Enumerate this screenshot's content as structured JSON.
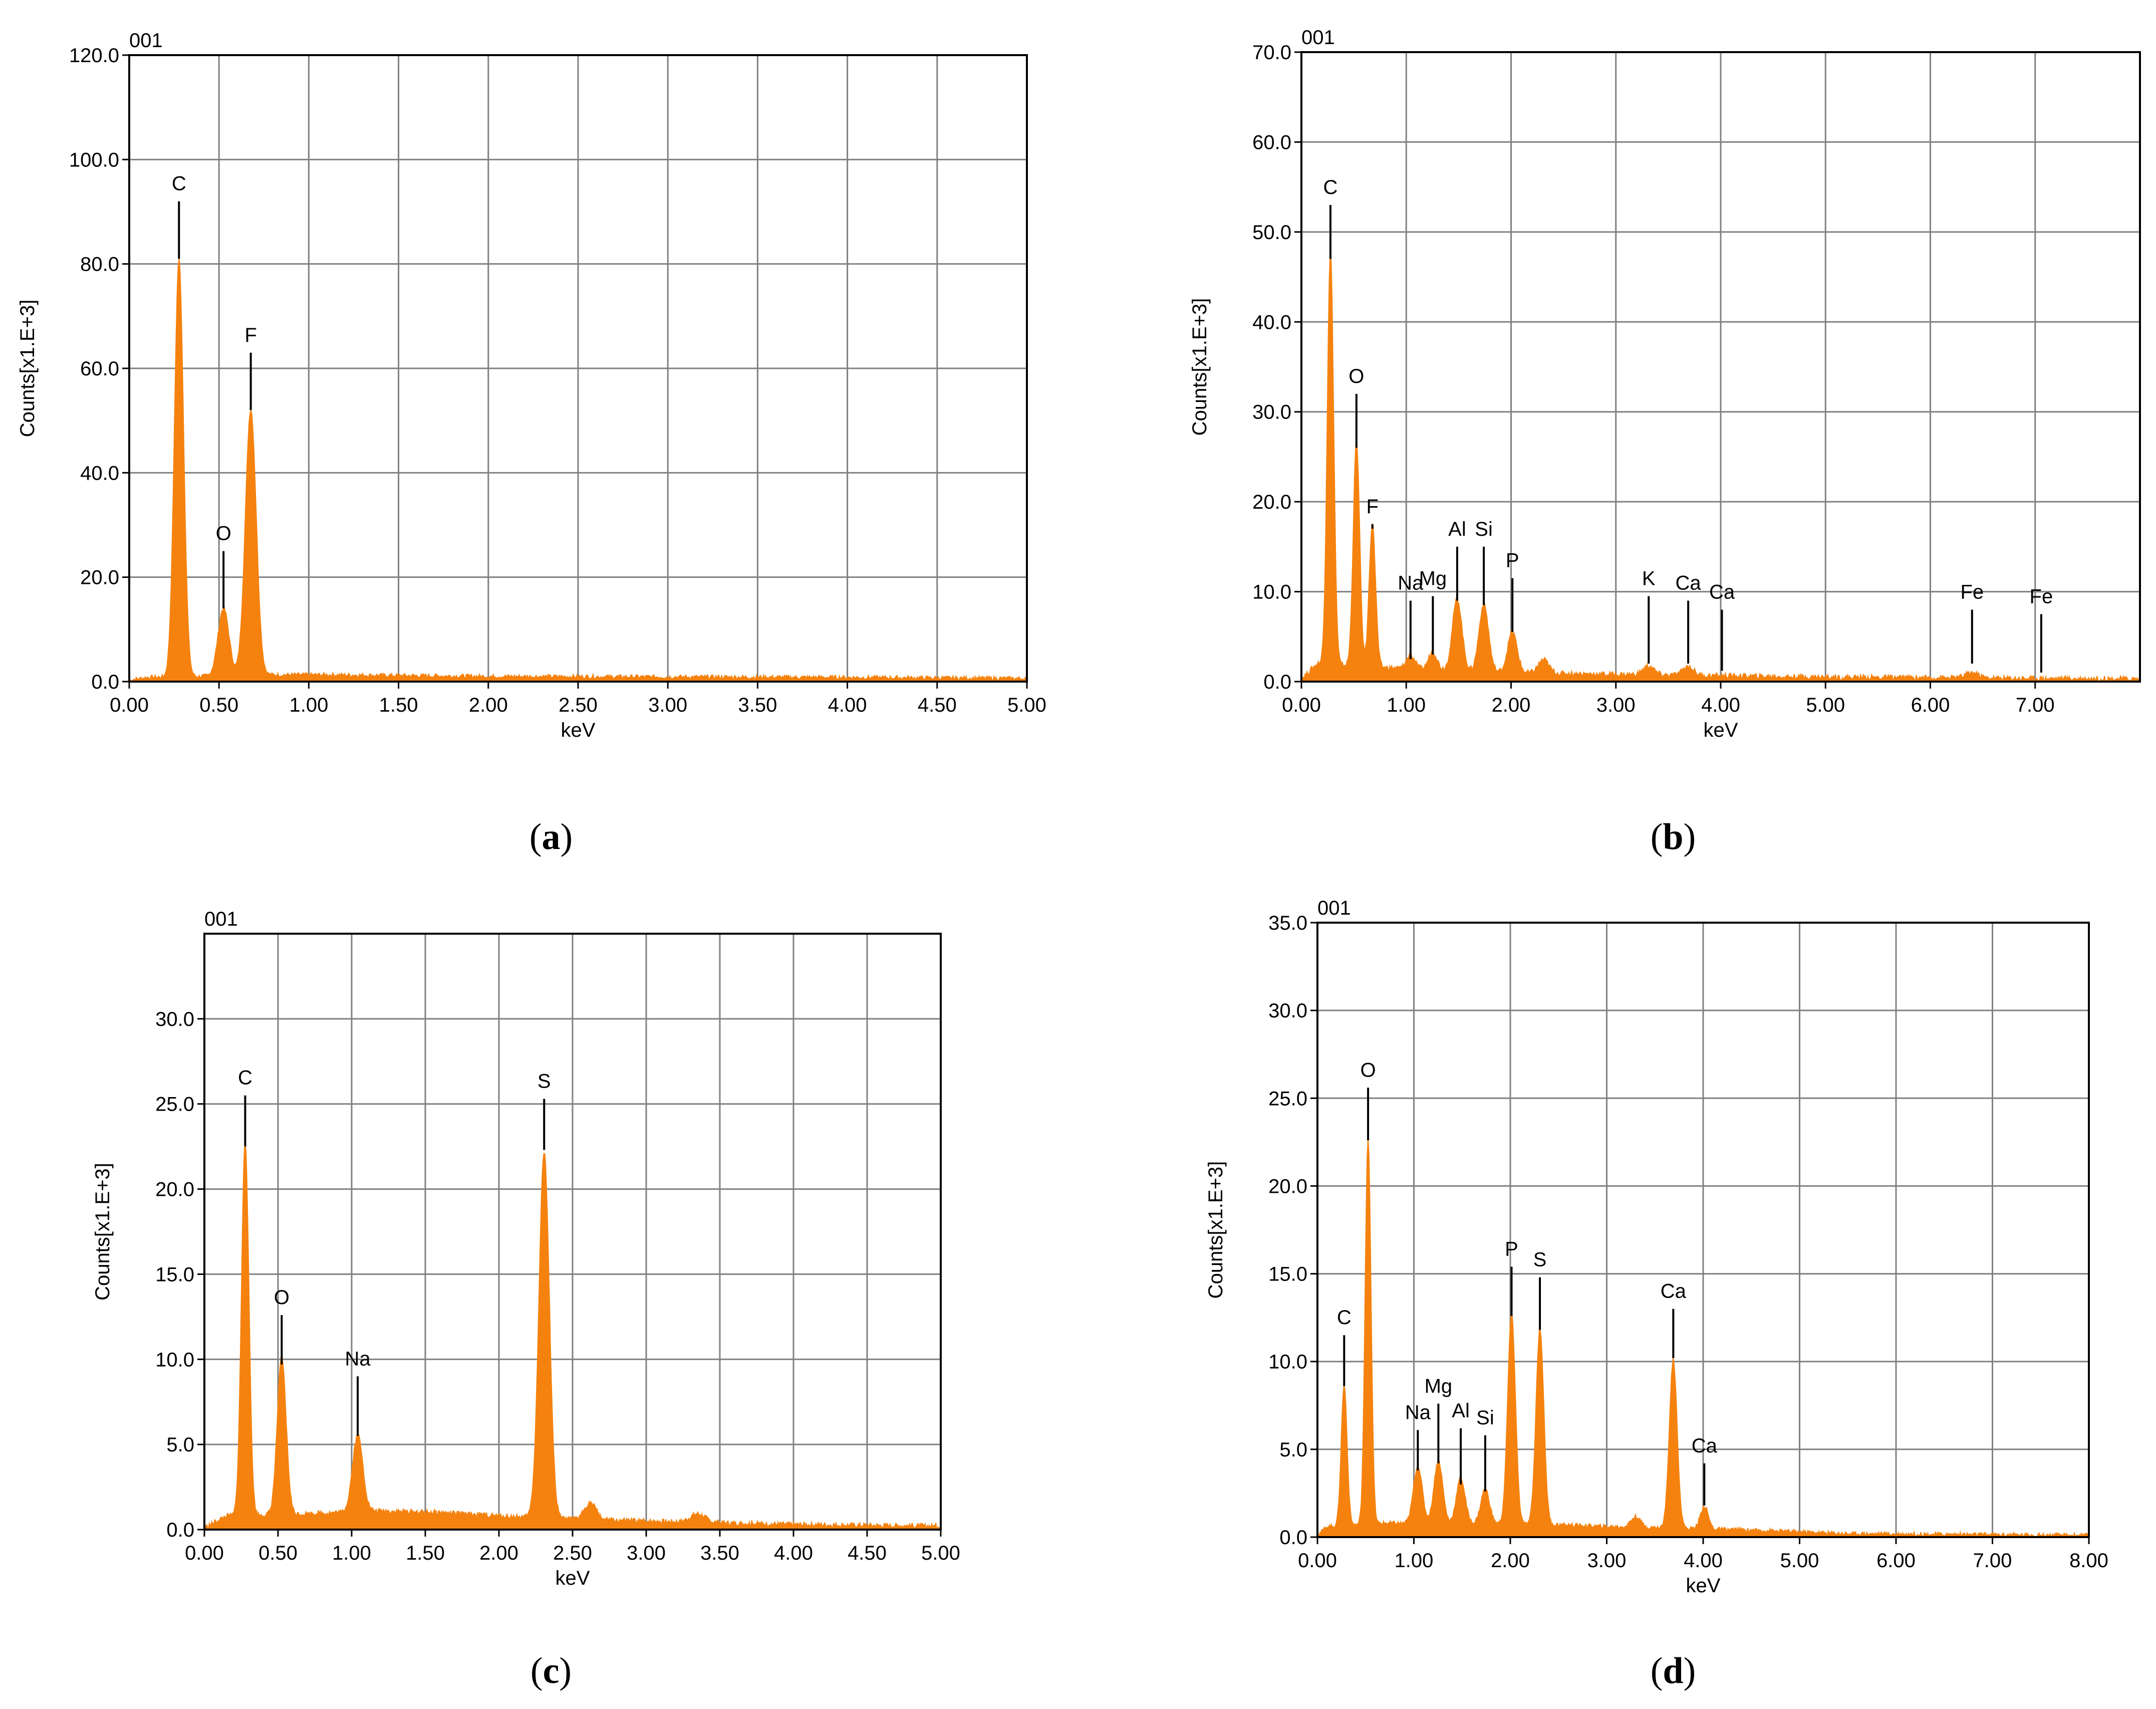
{
  "colors": {
    "spectrum": "#F5820E",
    "grid": "#808080",
    "frame": "#000000",
    "text": "#000000"
  },
  "chart_data": [
    {
      "type": "area",
      "panel": "a",
      "caption": "a",
      "id_label": "001",
      "xlabel": "keV",
      "ylabel": "Counts[x1.E+3]",
      "xlim": [
        0,
        5
      ],
      "ylim": [
        0,
        120
      ],
      "xticks": [
        0,
        0.5,
        1,
        1.5,
        2,
        2.5,
        3,
        3.5,
        4,
        4.5,
        5
      ],
      "xtick_labels": [
        "0.00",
        "0.50",
        "1.00",
        "1.50",
        "2.00",
        "2.50",
        "3.00",
        "3.50",
        "4.00",
        "4.50",
        "5.00"
      ],
      "yticks": [
        0,
        20,
        40,
        60,
        80,
        100,
        120
      ],
      "ytick_labels": [
        "0.0",
        "20.0",
        "40.0",
        "60.0",
        "80.0",
        "100.0",
        "120.0"
      ],
      "grid": true,
      "baseline": 0.8,
      "noise": 0.4,
      "background": [
        [
          0,
          0.3
        ],
        [
          0.1,
          0.8
        ],
        [
          0.8,
          1.3
        ],
        [
          1.1,
          1.3
        ],
        [
          2,
          1.0
        ],
        [
          3,
          0.9
        ],
        [
          4,
          0.8
        ],
        [
          5,
          0.6
        ]
      ],
      "peaks": [
        {
          "element": "C",
          "energy": 0.277,
          "counts": 80,
          "width": 0.025
        },
        {
          "element": "O",
          "energy": 0.525,
          "counts": 13,
          "width": 0.03
        },
        {
          "element": "F",
          "energy": 0.677,
          "counts": 51,
          "width": 0.03
        }
      ],
      "markers": [
        {
          "label": "C",
          "energy": 0.277,
          "y_bottom": 81,
          "y_top": 92
        },
        {
          "label": "O",
          "energy": 0.525,
          "y_bottom": 14,
          "y_top": 25
        },
        {
          "label": "F",
          "energy": 0.677,
          "y_bottom": 52,
          "y_top": 63
        }
      ]
    },
    {
      "type": "area",
      "panel": "b",
      "caption": "b",
      "id_label": "001",
      "xlabel": "keV",
      "ylabel": "Counts[x1.E+3]",
      "xlim": [
        0,
        8
      ],
      "ylim": [
        0,
        70
      ],
      "xticks": [
        0,
        1,
        2,
        3,
        4,
        5,
        6,
        7
      ],
      "xtick_labels": [
        "0.00",
        "1.00",
        "2.00",
        "3.00",
        "4.00",
        "5.00",
        "6.00",
        "7.00"
      ],
      "yticks": [
        0,
        10,
        20,
        30,
        40,
        50,
        60,
        70
      ],
      "ytick_labels": [
        "0.0",
        "10.0",
        "20.0",
        "30.0",
        "40.0",
        "50.0",
        "60.0",
        "70.0"
      ],
      "grid": true,
      "baseline": 0.6,
      "noise": 0.3,
      "background": [
        [
          0,
          0.3
        ],
        [
          0.15,
          2.0
        ],
        [
          0.9,
          1.5
        ],
        [
          2,
          1.0
        ],
        [
          3,
          0.8
        ],
        [
          5,
          0.5
        ],
        [
          8,
          0.3
        ]
      ],
      "peaks": [
        {
          "element": "C",
          "energy": 0.277,
          "counts": 46,
          "width": 0.03
        },
        {
          "element": "O",
          "energy": 0.525,
          "counts": 25,
          "width": 0.03
        },
        {
          "element": "F",
          "energy": 0.677,
          "counts": 16,
          "width": 0.03
        },
        {
          "element": "Na",
          "energy": 1.041,
          "counts": 1.5,
          "width": 0.04
        },
        {
          "element": "Mg",
          "energy": 1.254,
          "counts": 2,
          "width": 0.04
        },
        {
          "element": "Al",
          "energy": 1.486,
          "counts": 8,
          "width": 0.045
        },
        {
          "element": "Si",
          "energy": 1.74,
          "counts": 7.5,
          "width": 0.045
        },
        {
          "element": "P",
          "energy": 2.013,
          "counts": 4.5,
          "width": 0.045
        },
        {
          "element": "",
          "energy": 2.31,
          "counts": 1.5,
          "width": 0.05
        },
        {
          "element": "K",
          "energy": 3.313,
          "counts": 1,
          "width": 0.05
        },
        {
          "element": "Ca",
          "energy": 3.69,
          "counts": 1,
          "width": 0.05
        },
        {
          "element": "Fe",
          "energy": 6.398,
          "counts": 0.6,
          "width": 0.06
        }
      ],
      "markers": [
        {
          "label": "C",
          "energy": 0.277,
          "y_bottom": 47,
          "y_top": 53
        },
        {
          "label": "O",
          "energy": 0.525,
          "y_bottom": 26,
          "y_top": 32
        },
        {
          "label": "F",
          "energy": 0.677,
          "y_bottom": 17,
          "y_top": 17.5
        },
        {
          "label": "Na",
          "energy": 1.041,
          "y_bottom": 2.5,
          "y_top": 9
        },
        {
          "label": "Mg",
          "energy": 1.254,
          "y_bottom": 3,
          "y_top": 9.5
        },
        {
          "label": "Al",
          "energy": 1.486,
          "y_bottom": 9,
          "y_top": 15
        },
        {
          "label": "Si",
          "energy": 1.74,
          "y_bottom": 8.5,
          "y_top": 15
        },
        {
          "label": "P",
          "energy": 2.013,
          "y_bottom": 5.5,
          "y_top": 11.5
        },
        {
          "label": "K",
          "energy": 3.313,
          "y_bottom": 2,
          "y_top": 9.5
        },
        {
          "label": "Ca",
          "energy": 3.69,
          "y_bottom": 2,
          "y_top": 9
        },
        {
          "label": "Ca",
          "energy": 4.012,
          "y_bottom": 1.2,
          "y_top": 8
        },
        {
          "label": "Fe",
          "energy": 6.398,
          "y_bottom": 2,
          "y_top": 8
        },
        {
          "label": "Fe",
          "energy": 7.058,
          "y_bottom": 1,
          "y_top": 7.5
        }
      ]
    },
    {
      "type": "area",
      "panel": "c",
      "caption": "c",
      "id_label": "001",
      "xlabel": "keV",
      "ylabel": "Counts[x1.E+3]",
      "xlim": [
        0,
        5
      ],
      "ylim": [
        0,
        35
      ],
      "xticks": [
        0,
        0.5,
        1,
        1.5,
        2,
        2.5,
        3,
        3.5,
        4,
        4.5,
        5
      ],
      "xtick_labels": [
        "0.00",
        "0.50",
        "1.00",
        "1.50",
        "2.00",
        "2.50",
        "3.00",
        "3.50",
        "4.00",
        "4.50",
        "5.00"
      ],
      "yticks": [
        0,
        5,
        10,
        15,
        20,
        25,
        30
      ],
      "ytick_labels": [
        "0.0",
        "5.0",
        "10.0",
        "15.0",
        "20.0",
        "25.0",
        "30.0"
      ],
      "grid": true,
      "baseline": 0.3,
      "noise": 0.15,
      "background": [
        [
          0,
          0.1
        ],
        [
          0.15,
          0.8
        ],
        [
          0.6,
          0.9
        ],
        [
          1.2,
          1.1
        ],
        [
          1.6,
          1.0
        ],
        [
          2.0,
          0.8
        ],
        [
          2.5,
          0.6
        ],
        [
          3.0,
          0.5
        ],
        [
          4.0,
          0.3
        ],
        [
          5,
          0.2
        ]
      ],
      "peaks": [
        {
          "element": "C",
          "energy": 0.277,
          "counts": 22,
          "width": 0.025
        },
        {
          "element": "O",
          "energy": 0.525,
          "counts": 9.2,
          "width": 0.03
        },
        {
          "element": "Na",
          "energy": 1.041,
          "counts": 4.5,
          "width": 0.035
        },
        {
          "element": "S",
          "energy": 2.307,
          "counts": 21.5,
          "width": 0.035
        },
        {
          "element": "",
          "energy": 2.62,
          "counts": 1.0,
          "width": 0.04
        },
        {
          "element": "",
          "energy": 3.35,
          "counts": 0.5,
          "width": 0.05
        }
      ],
      "markers": [
        {
          "label": "C",
          "energy": 0.277,
          "y_bottom": 22.5,
          "y_top": 25.5
        },
        {
          "label": "O",
          "energy": 0.525,
          "y_bottom": 9.7,
          "y_top": 12.6
        },
        {
          "label": "Na",
          "energy": 1.041,
          "y_bottom": 5.5,
          "y_top": 9.0
        },
        {
          "label": "S",
          "energy": 2.307,
          "y_bottom": 22.3,
          "y_top": 25.3
        }
      ]
    },
    {
      "type": "area",
      "panel": "d",
      "caption": "d",
      "id_label": "001",
      "xlabel": "keV",
      "ylabel": "Counts[x1.E+3]",
      "xlim": [
        0,
        8
      ],
      "ylim": [
        0,
        35
      ],
      "xticks": [
        0,
        1,
        2,
        3,
        4,
        5,
        6,
        7,
        8
      ],
      "xtick_labels": [
        "0.00",
        "1.00",
        "2.00",
        "3.00",
        "4.00",
        "5.00",
        "6.00",
        "7.00",
        "8.00"
      ],
      "yticks": [
        0,
        5,
        10,
        15,
        20,
        25,
        30,
        35
      ],
      "ytick_labels": [
        "0.0",
        "5.0",
        "10.0",
        "15.0",
        "20.0",
        "25.0",
        "30.0",
        "35.0"
      ],
      "grid": true,
      "baseline": 0.25,
      "noise": 0.12,
      "background": [
        [
          0,
          0.1
        ],
        [
          0.1,
          0.6
        ],
        [
          0.7,
          0.8
        ],
        [
          2.5,
          0.7
        ],
        [
          3.0,
          0.6
        ],
        [
          4.5,
          0.4
        ],
        [
          5.5,
          0.2
        ],
        [
          8,
          0.1
        ]
      ],
      "peaks": [
        {
          "element": "C",
          "energy": 0.277,
          "counts": 8,
          "width": 0.03
        },
        {
          "element": "O",
          "energy": 0.525,
          "counts": 22,
          "width": 0.03
        },
        {
          "element": "Na",
          "energy": 1.041,
          "counts": 3.3,
          "width": 0.045
        },
        {
          "element": "Mg",
          "energy": 1.254,
          "counts": 3.6,
          "width": 0.045
        },
        {
          "element": "Al",
          "energy": 1.486,
          "counts": 2.6,
          "width": 0.045
        },
        {
          "element": "Si",
          "energy": 1.74,
          "counts": 2.0,
          "width": 0.045
        },
        {
          "element": "P",
          "energy": 2.013,
          "counts": 12,
          "width": 0.04
        },
        {
          "element": "S",
          "energy": 2.307,
          "counts": 11.2,
          "width": 0.04
        },
        {
          "element": "Ca",
          "energy": 3.69,
          "counts": 9.6,
          "width": 0.04
        },
        {
          "element": "Ca",
          "energy": 4.012,
          "counts": 1.3,
          "width": 0.04
        },
        {
          "element": "",
          "energy": 3.3,
          "counts": 0.6,
          "width": 0.05
        }
      ],
      "markers": [
        {
          "label": "C",
          "energy": 0.277,
          "y_bottom": 8.6,
          "y_top": 11.5
        },
        {
          "label": "O",
          "energy": 0.525,
          "y_bottom": 22.6,
          "y_top": 25.6
        },
        {
          "label": "Na",
          "energy": 1.041,
          "y_bottom": 3.8,
          "y_top": 6.1
        },
        {
          "label": "Mg",
          "energy": 1.254,
          "y_bottom": 4.2,
          "y_top": 7.6
        },
        {
          "label": "Al",
          "energy": 1.486,
          "y_bottom": 3.0,
          "y_top": 6.2
        },
        {
          "label": "Si",
          "energy": 1.74,
          "y_bottom": 2.6,
          "y_top": 5.8
        },
        {
          "label": "P",
          "energy": 2.013,
          "y_bottom": 12.6,
          "y_top": 15.4
        },
        {
          "label": "S",
          "energy": 2.307,
          "y_bottom": 11.8,
          "y_top": 14.8
        },
        {
          "label": "Ca",
          "energy": 3.69,
          "y_bottom": 10.2,
          "y_top": 13.0
        },
        {
          "label": "Ca",
          "energy": 4.012,
          "y_bottom": 1.8,
          "y_top": 4.2
        }
      ]
    }
  ]
}
